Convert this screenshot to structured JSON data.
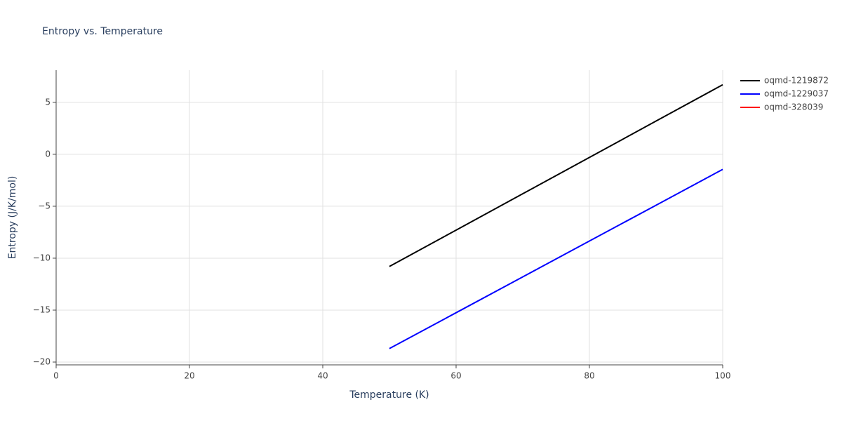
{
  "chart_data": {
    "type": "line",
    "title": "Entropy vs. Temperature",
    "x_label": "Temperature (K)",
    "y_label": "Entropy (J/K/mol)",
    "x": [
      50,
      60,
      70,
      80,
      90,
      100
    ],
    "series": [
      {
        "name": "oqmd-1219872",
        "color": "#000000",
        "values": [
          -10.8,
          -7.3,
          -3.8,
          -0.3,
          3.2,
          6.7
        ]
      },
      {
        "name": "oqmd-1229037",
        "color": "#0000ff",
        "values": [
          -18.7,
          -15.25,
          -11.8,
          -8.35,
          -4.9,
          -1.45
        ]
      },
      {
        "name": "oqmd-328039",
        "color": "#ff0000",
        "values": [
          null,
          null,
          null,
          null,
          null,
          null
        ]
      }
    ],
    "xlim": [
      0,
      100
    ],
    "xticks": [
      0,
      20,
      40,
      60,
      80,
      100
    ],
    "ylim": [
      -20.27,
      8.1
    ],
    "yticks": [
      {
        "value": -20,
        "label": "−20"
      },
      {
        "value": -15,
        "label": "−15"
      },
      {
        "value": -10,
        "label": "−10"
      },
      {
        "value": -5,
        "label": "−5"
      },
      0,
      5
    ],
    "grid": true,
    "legend": "right"
  }
}
